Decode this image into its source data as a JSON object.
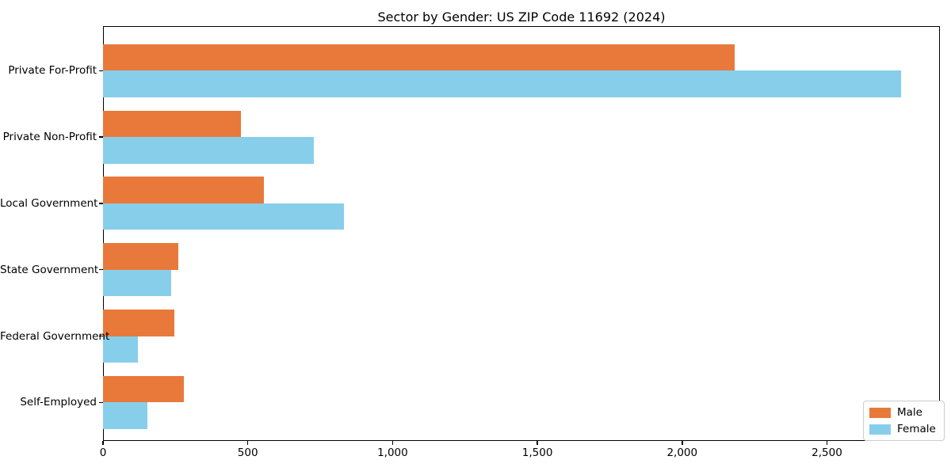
{
  "chart_data": {
    "type": "bar",
    "orientation": "horizontal",
    "title": "Sector by Gender: US ZIP Code 11692 (2024)",
    "categories": [
      "Private For-Profit",
      "Private Non-Profit",
      "Local Government",
      "State Government",
      "Federal Government",
      "Self-Employed"
    ],
    "series": [
      {
        "name": "Male",
        "color": "#e8793b",
        "values": [
          2180,
          475,
          556,
          261,
          247,
          279
        ]
      },
      {
        "name": "Female",
        "color": "#87ceeb",
        "values": [
          2755,
          727,
          832,
          236,
          120,
          154
        ]
      }
    ],
    "xlabel": "",
    "ylabel": "",
    "xlim": [
      0,
      2890
    ],
    "x_ticks": [
      0,
      500,
      1000,
      1500,
      2000,
      2500
    ],
    "x_tick_labels": [
      "0",
      "500",
      "1,000",
      "1,500",
      "2,000",
      "2,500"
    ],
    "grid": false,
    "legend": {
      "position": "lower right",
      "entries": [
        "Male",
        "Female"
      ]
    }
  },
  "colors": {
    "background": "#ffffff",
    "axis": "#000000",
    "male": "#e8793b",
    "female": "#87ceeb",
    "legend_border": "#cccccc"
  }
}
